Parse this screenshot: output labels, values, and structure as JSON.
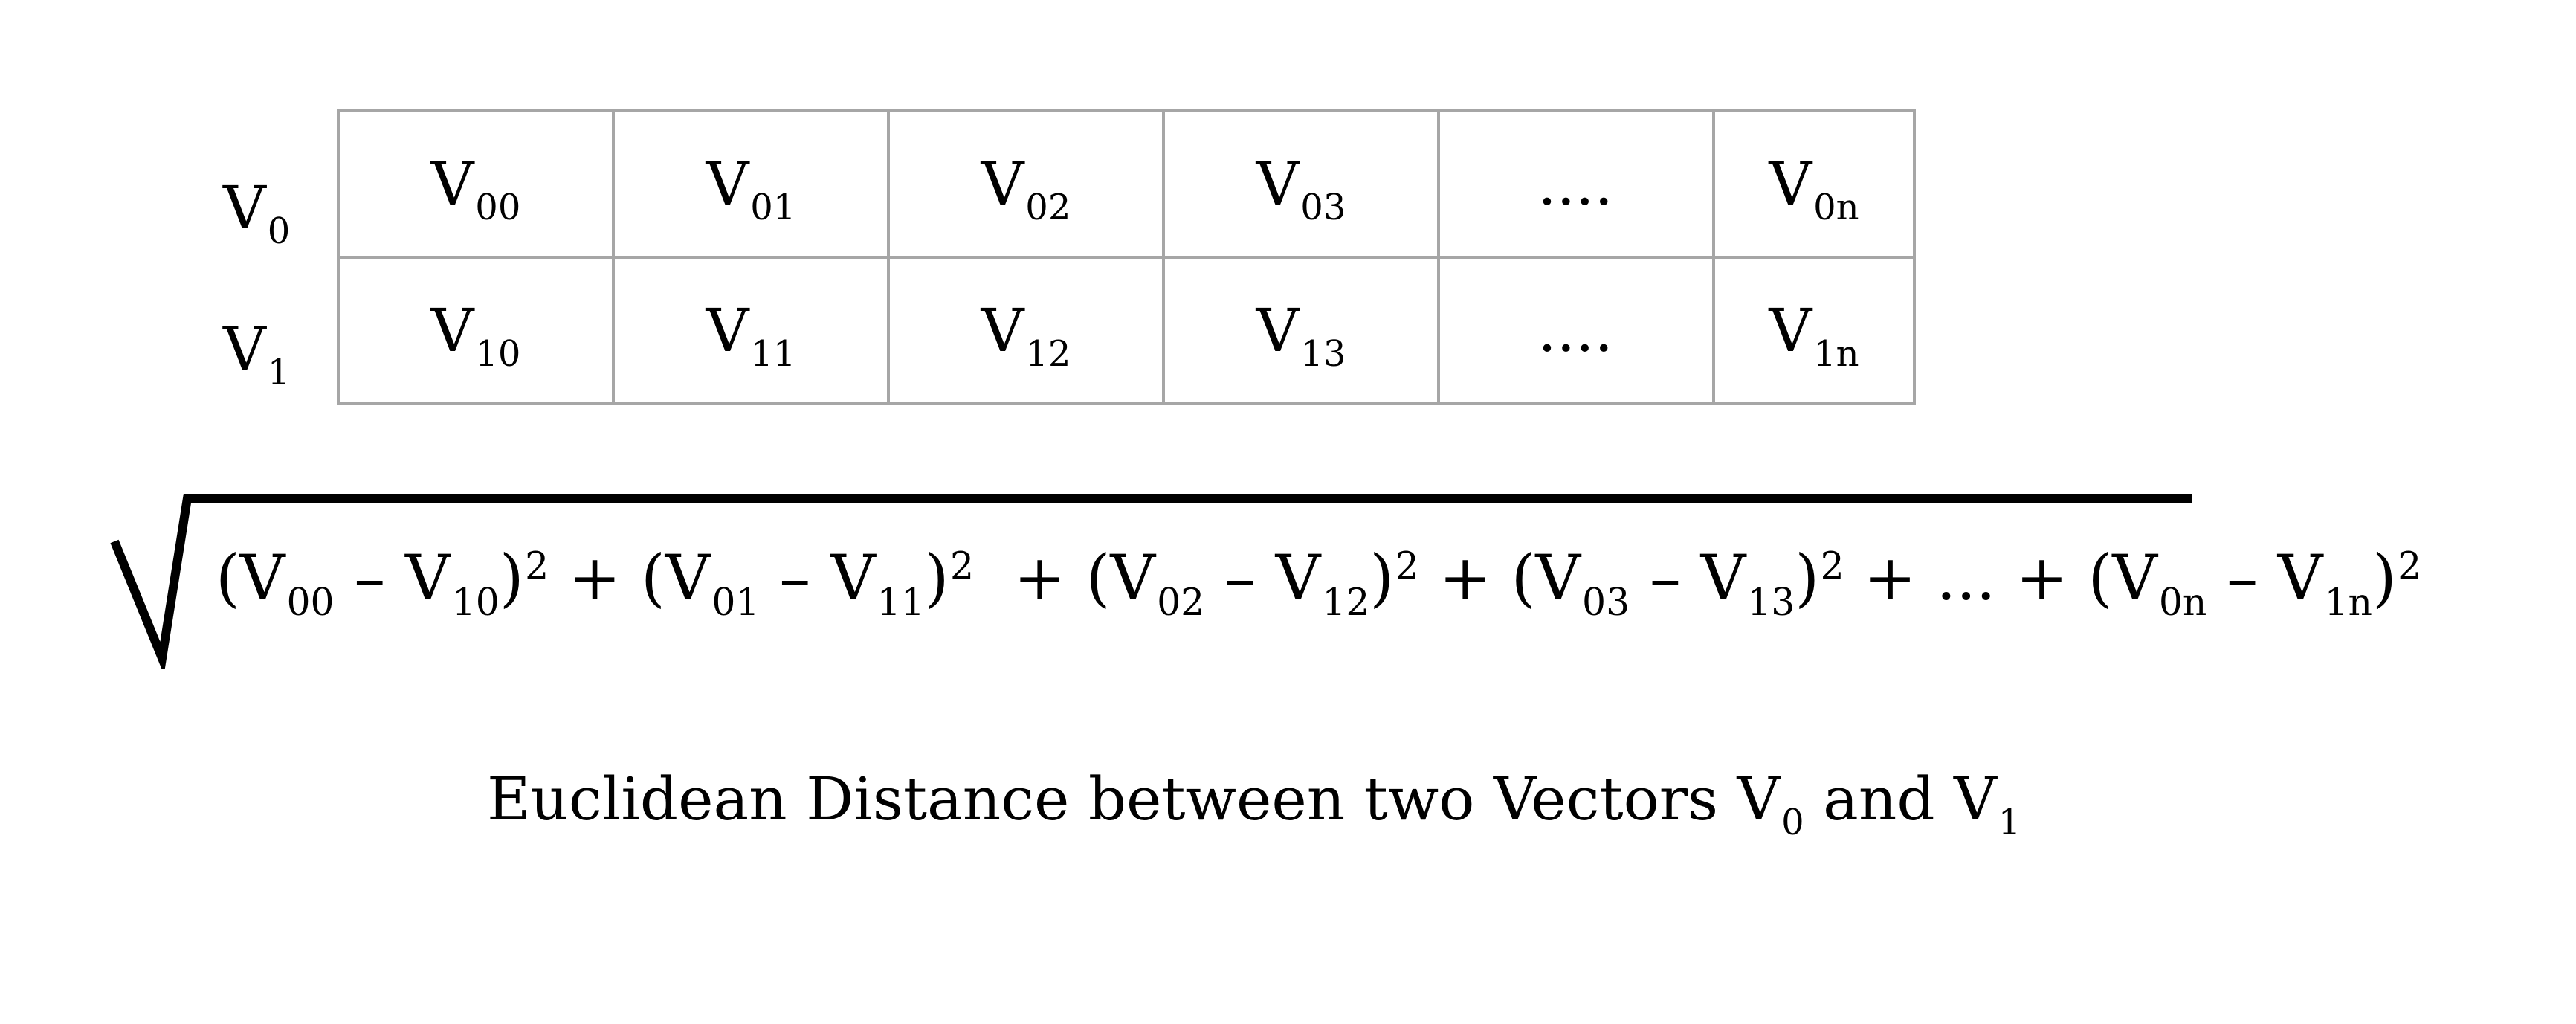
{
  "rows": [
    {
      "label": "V",
      "label_sub": "0",
      "cells": [
        {
          "base": "V",
          "sub": "00"
        },
        {
          "base": "V",
          "sub": "01"
        },
        {
          "base": "V",
          "sub": "02"
        },
        {
          "base": "V",
          "sub": "03"
        },
        {
          "base": "....",
          "sub": ""
        },
        {
          "base": "V",
          "sub": "0n"
        }
      ]
    },
    {
      "label": "V",
      "label_sub": "1",
      "cells": [
        {
          "base": "V",
          "sub": "10"
        },
        {
          "base": "V",
          "sub": "11"
        },
        {
          "base": "V",
          "sub": "12"
        },
        {
          "base": "V",
          "sub": "13"
        },
        {
          "base": "....",
          "sub": ""
        },
        {
          "base": "V",
          "sub": "1n"
        }
      ]
    }
  ],
  "formula": {
    "terms": [
      {
        "a": "V",
        "a_sub": "00",
        "b": "V",
        "b_sub": "10",
        "sep": " + "
      },
      {
        "a": "V",
        "a_sub": "01",
        "b": "V",
        "b_sub": "11",
        "sep": "  + "
      },
      {
        "a": "V",
        "a_sub": "02",
        "b": "V",
        "b_sub": "12",
        "sep": " + "
      },
      {
        "a": "V",
        "a_sub": "03",
        "b": "V",
        "b_sub": "13",
        "sep": " + ... + "
      },
      {
        "a": "V",
        "a_sub": "0n",
        "b": "V",
        "b_sub": "1n",
        "sep": ""
      }
    ],
    "minus": " – ",
    "power": "2"
  },
  "caption": {
    "text": "Euclidean Distance between two Vectors ",
    "v0": "V",
    "v0_sub": "0",
    "joiner": " and ",
    "v1": "V",
    "v1_sub": "1"
  }
}
